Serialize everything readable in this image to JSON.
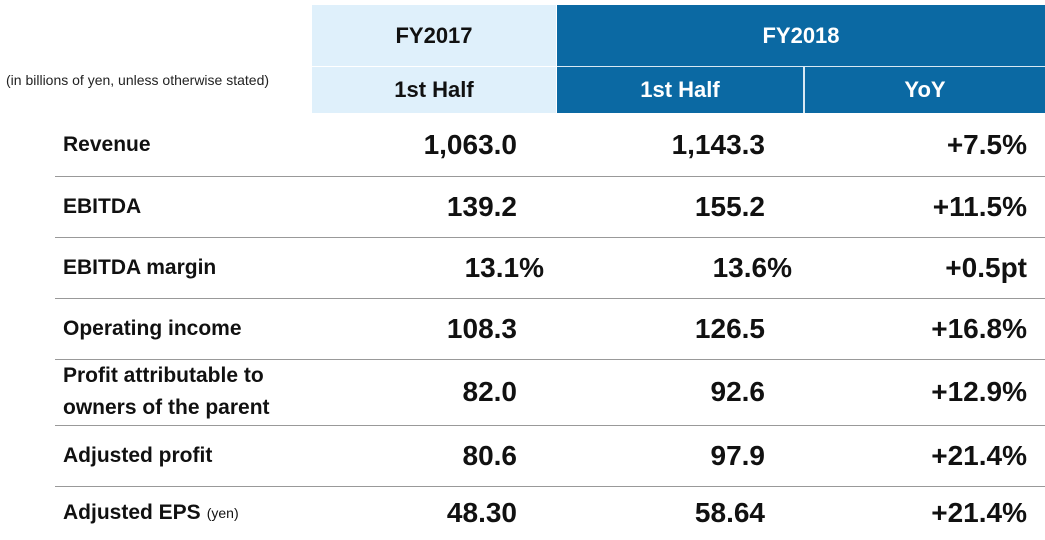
{
  "note": "(in billions of yen, unless otherwise stated)",
  "header": {
    "groups": [
      {
        "label": "FY2017",
        "columns": [
          "1st Half"
        ]
      },
      {
        "label": "FY2018",
        "columns": [
          "1st Half",
          "YoY"
        ]
      }
    ]
  },
  "rows": [
    {
      "label": "Revenue",
      "values": [
        "1,063.0",
        "1,143.3",
        "+7.5%"
      ]
    },
    {
      "label": "EBITDA",
      "values": [
        "139.2",
        "155.2",
        "+11.5%"
      ]
    },
    {
      "label": "EBITDA margin",
      "values": [
        "13.1%",
        "13.6%",
        "+0.5pt"
      ]
    },
    {
      "label": "Operating income",
      "values": [
        "108.3",
        "126.5",
        "+16.8%"
      ]
    },
    {
      "label": "Profit attributable to owners of the parent",
      "values": [
        "82.0",
        "92.6",
        "+12.9%"
      ]
    },
    {
      "label": "Adjusted profit",
      "values": [
        "80.6",
        "97.9",
        "+21.4%"
      ]
    },
    {
      "label": "Adjusted EPS",
      "unit": "(yen)",
      "values": [
        "48.30",
        "58.64",
        "+21.4%"
      ]
    }
  ]
}
